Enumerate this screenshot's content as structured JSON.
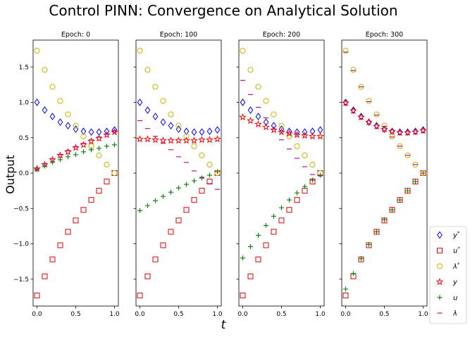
{
  "chart_data": {
    "type": "scatter",
    "title": "Control PINN: Convergence on Analytical Solution",
    "xlabel": "t",
    "ylabel": "Output",
    "xlim": [
      -0.05,
      1.05
    ],
    "ylim": [
      -1.88,
      1.88
    ],
    "x_ticks": [
      "0.0",
      "0.5",
      "1.0"
    ],
    "y_ticks": [
      "−1.5",
      "−1.0",
      "−0.5",
      "0.0",
      "0.5",
      "1.0",
      "1.5"
    ],
    "y_tick_values": [
      -1.5,
      -1.0,
      -0.5,
      0.0,
      0.5,
      1.0,
      1.5
    ],
    "x_tick_values": [
      0,
      0.5,
      1.0
    ],
    "legend_position": "lower-right",
    "colors": {
      "y_star": "#0000ff",
      "u_star": "#dd0000",
      "lam_star": "#c8b400",
      "y": "#ff0000",
      "u": "#008000",
      "lam": "#b0008a"
    },
    "x": [
      0.0,
      0.1,
      0.2,
      0.3,
      0.4,
      0.5,
      0.6,
      0.7,
      0.8,
      0.9,
      1.0
    ],
    "series_ref": [
      {
        "key": "y_star",
        "name": "y*",
        "marker": "diamond",
        "values": [
          1.0,
          0.89,
          0.8,
          0.72,
          0.67,
          0.62,
          0.59,
          0.58,
          0.58,
          0.59,
          0.61
        ]
      },
      {
        "key": "u_star",
        "name": "u*",
        "marker": "square",
        "values": [
          -1.73,
          -1.46,
          -1.22,
          -1.02,
          -0.83,
          -0.67,
          -0.52,
          -0.38,
          -0.25,
          -0.12,
          0.0
        ]
      },
      {
        "key": "lam_star",
        "name": "λ*",
        "marker": "circle",
        "values": [
          1.73,
          1.46,
          1.22,
          1.02,
          0.83,
          0.67,
          0.52,
          0.38,
          0.25,
          0.12,
          0.0
        ]
      }
    ],
    "panels": [
      {
        "title": "Epoch: 0",
        "series": [
          {
            "key": "y",
            "name": "y",
            "marker": "star",
            "values": [
              0.06,
              0.12,
              0.19,
              0.25,
              0.3,
              0.36,
              0.4,
              0.45,
              0.49,
              0.54,
              0.58
            ]
          },
          {
            "key": "u",
            "name": "u",
            "marker": "plus",
            "values": [
              0.05,
              0.1,
              0.15,
              0.19,
              0.23,
              0.26,
              0.3,
              0.33,
              0.35,
              0.38,
              0.4
            ]
          },
          {
            "key": "lam",
            "name": "λ",
            "marker": "dash",
            "values": [
              0.06,
              0.13,
              0.2,
              0.26,
              0.32,
              0.37,
              0.42,
              0.47,
              0.51,
              0.55,
              0.6
            ]
          }
        ]
      },
      {
        "title": "Epoch: 100",
        "series": [
          {
            "key": "y",
            "name": "y",
            "marker": "star",
            "values": [
              0.48,
              0.48,
              0.47,
              0.46,
              0.46,
              0.46,
              0.46,
              0.46,
              0.47,
              0.47,
              0.48
            ]
          },
          {
            "key": "u",
            "name": "u",
            "marker": "plus",
            "values": [
              -0.53,
              -0.46,
              -0.39,
              -0.33,
              -0.27,
              -0.21,
              -0.16,
              -0.11,
              -0.07,
              -0.03,
              0.02
            ]
          },
          {
            "key": "lam",
            "name": "λ",
            "marker": "dash",
            "values": [
              0.74,
              0.63,
              0.52,
              0.42,
              0.33,
              0.23,
              0.15,
              0.03,
              -0.06,
              -0.15,
              -0.23
            ]
          }
        ]
      },
      {
        "title": "Epoch: 200",
        "series": [
          {
            "key": "y",
            "name": "y",
            "marker": "star",
            "values": [
              0.79,
              0.74,
              0.69,
              0.65,
              0.61,
              0.58,
              0.56,
              0.54,
              0.53,
              0.52,
              0.52
            ]
          },
          {
            "key": "u",
            "name": "u",
            "marker": "plus",
            "values": [
              -1.2,
              -1.04,
              -0.88,
              -0.74,
              -0.61,
              -0.49,
              -0.38,
              -0.28,
              -0.19,
              -0.1,
              -0.03
            ]
          },
          {
            "key": "lam",
            "name": "λ",
            "marker": "dash",
            "values": [
              1.31,
              1.11,
              0.93,
              0.78,
              0.62,
              0.47,
              0.34,
              0.21,
              0.09,
              -0.02,
              -0.04
            ]
          }
        ]
      },
      {
        "title": "Epoch: 300",
        "series": [
          {
            "key": "y",
            "name": "y",
            "marker": "star",
            "values": [
              0.99,
              0.88,
              0.79,
              0.72,
              0.66,
              0.62,
              0.59,
              0.57,
              0.57,
              0.58,
              0.6
            ]
          },
          {
            "key": "u",
            "name": "u",
            "marker": "plus",
            "values": [
              -1.64,
              -1.42,
              -1.21,
              -1.01,
              -0.83,
              -0.66,
              -0.52,
              -0.38,
              -0.25,
              -0.12,
              0.0
            ]
          },
          {
            "key": "lam",
            "name": "λ",
            "marker": "dash",
            "values": [
              1.71,
              1.45,
              1.22,
              1.01,
              0.82,
              0.66,
              0.51,
              0.38,
              0.25,
              0.12,
              0.0
            ]
          }
        ]
      }
    ]
  },
  "legend": {
    "items": [
      {
        "key": "y_star",
        "marker": "diamond",
        "base": "y",
        "sup": "*"
      },
      {
        "key": "u_star",
        "marker": "square",
        "base": "u",
        "sup": "*"
      },
      {
        "key": "lam_star",
        "marker": "circle",
        "base": "λ",
        "sup": "*"
      },
      {
        "key": "y",
        "marker": "star",
        "base": "y",
        "sup": ""
      },
      {
        "key": "u",
        "marker": "plus",
        "base": "u",
        "sup": ""
      },
      {
        "key": "lam",
        "marker": "dash",
        "base": "λ",
        "sup": ""
      }
    ]
  }
}
